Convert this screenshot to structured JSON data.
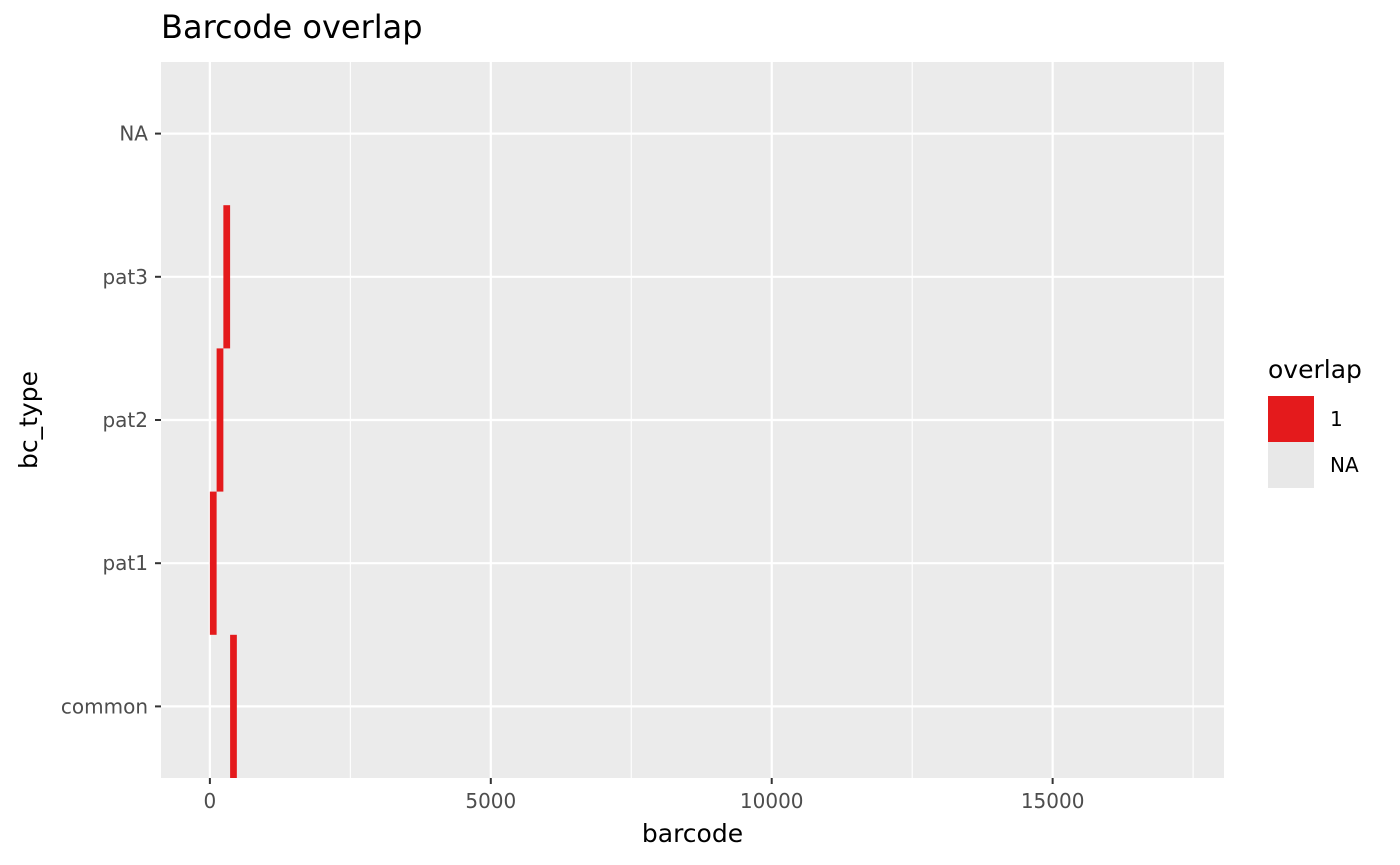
{
  "chart_data": {
    "type": "tile",
    "title": "Barcode overlap",
    "xlabel": "barcode",
    "ylabel": "bc_type",
    "categories": [
      "common",
      "pat1",
      "pat2",
      "pat3",
      "NA"
    ],
    "x_ticks": [
      0,
      5000,
      10000,
      15000
    ],
    "x_tick_labels": [
      "0",
      "5000",
      "10000",
      "15000"
    ],
    "xlim": [
      -870,
      18050
    ],
    "grid": true,
    "legend": {
      "title": "overlap",
      "position": "right",
      "entries": [
        {
          "label": "1",
          "color": "#e41a1c"
        },
        {
          "label": "NA",
          "color": "#e8e8e8"
        }
      ]
    },
    "bars": [
      {
        "category": "common",
        "x_start": 360,
        "x_end": 480,
        "value": "1"
      },
      {
        "category": "pat1",
        "x_start": 0,
        "x_end": 120,
        "value": "1"
      },
      {
        "category": "pat2",
        "x_start": 120,
        "x_end": 240,
        "value": "1"
      },
      {
        "category": "pat3",
        "x_start": 240,
        "x_end": 360,
        "value": "1"
      }
    ],
    "colors": {
      "panel": "#ebebeb",
      "grid": "#ffffff",
      "bar": "#e41a1c"
    }
  }
}
